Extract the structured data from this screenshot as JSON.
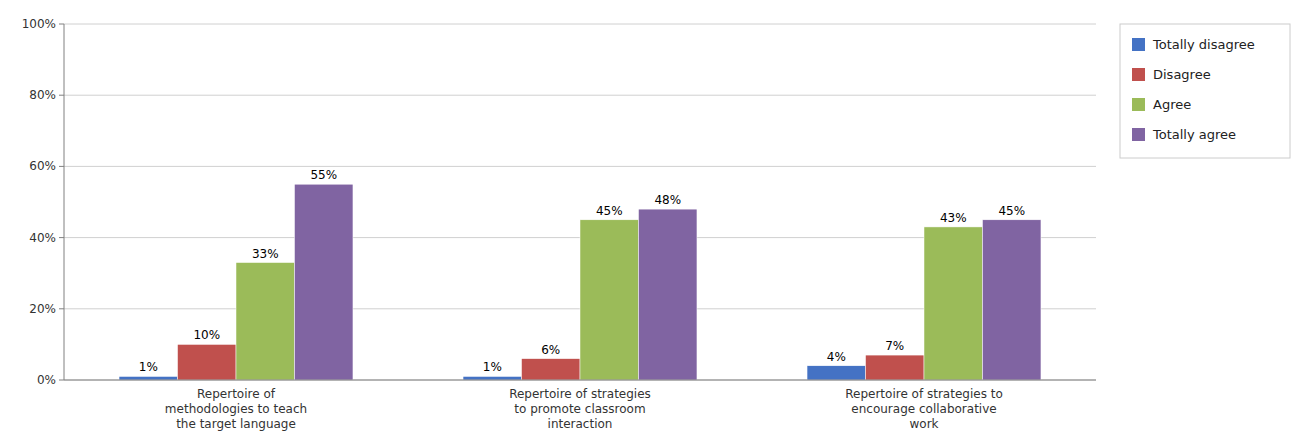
{
  "chart_data": {
    "type": "bar",
    "categories": [
      "Repertoire of\nmethodologies to teach\nthe target language",
      "Repertoire of strategies\nto promote classroom\ninteraction",
      "Repertoire of strategies to\nencourage collaborative\nwork"
    ],
    "series": [
      {
        "name": "Totally disagree",
        "color": "#4472C4",
        "values": [
          1,
          1,
          4
        ],
        "value_labels": [
          "1%",
          "1%",
          "4%"
        ]
      },
      {
        "name": "Disagree",
        "color": "#C0504D",
        "values": [
          10,
          6,
          7
        ],
        "value_labels": [
          "10%",
          "6%",
          "7%"
        ]
      },
      {
        "name": "Agree",
        "color": "#9BBB59",
        "values": [
          33,
          45,
          43
        ],
        "value_labels": [
          "33%",
          "45%",
          "43%"
        ]
      },
      {
        "name": "Totally agree",
        "color": "#8064A2",
        "values": [
          55,
          48,
          45
        ],
        "value_labels": [
          "55%",
          "48%",
          "45%"
        ]
      }
    ],
    "ylim": [
      0,
      100
    ],
    "yticks": [
      {
        "value": 0,
        "label": "0%"
      },
      {
        "value": 20,
        "label": "20%"
      },
      {
        "value": 40,
        "label": "40%"
      },
      {
        "value": 60,
        "label": "60%"
      },
      {
        "value": 80,
        "label": "80%"
      },
      {
        "value": 100,
        "label": "100%"
      }
    ],
    "grid": true,
    "legend": "right",
    "data_labels": true
  }
}
